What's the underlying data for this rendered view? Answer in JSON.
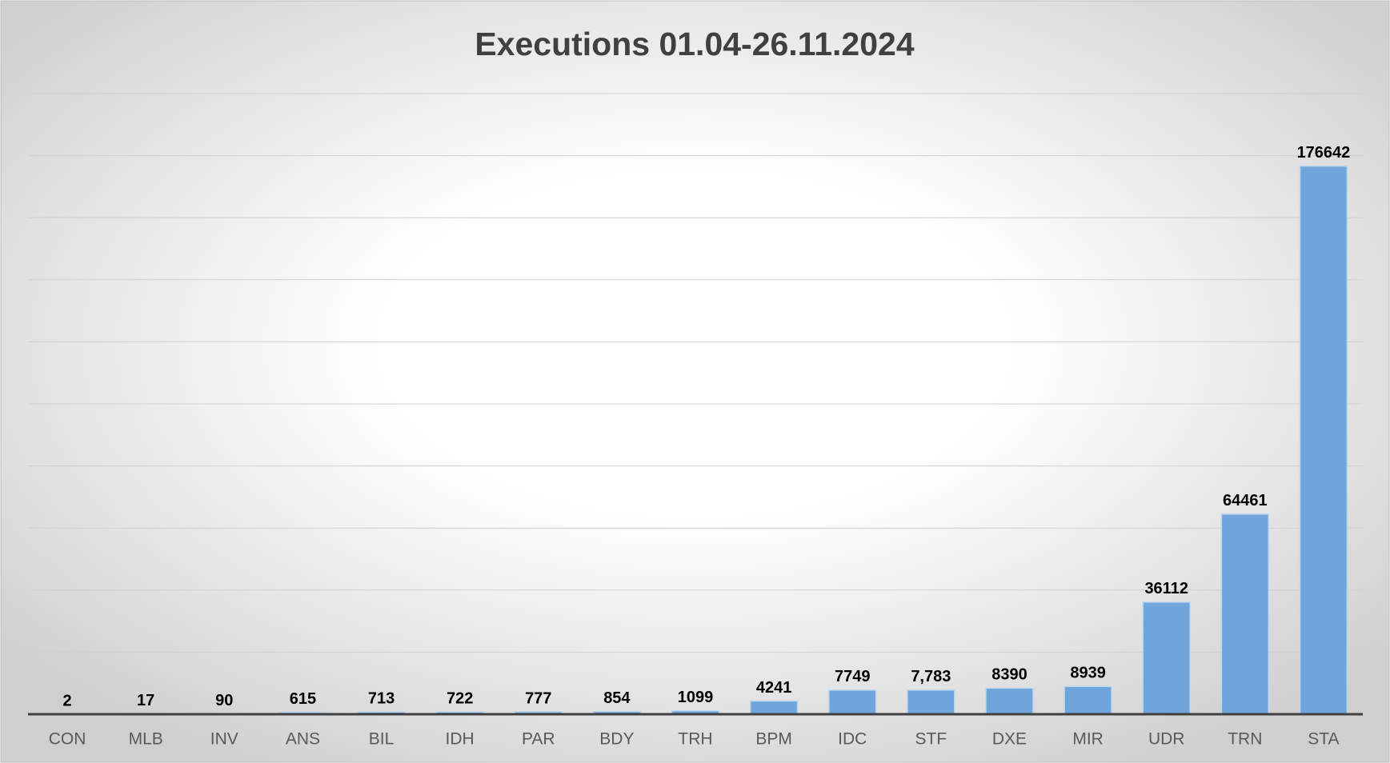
{
  "chart_data": {
    "type": "bar",
    "title": "Executions 01.04-26.11.2024",
    "categories": [
      "CON",
      "MLB",
      "INV",
      "ANS",
      "BIL",
      "IDH",
      "PAR",
      "BDY",
      "TRH",
      "BPM",
      "IDC",
      "STF",
      "DXE",
      "MIR",
      "UDR",
      "TRN",
      "STA"
    ],
    "values": [
      2,
      17,
      90,
      615,
      713,
      722,
      777,
      854,
      1099,
      4241,
      7749,
      7783,
      8390,
      8939,
      36112,
      64461,
      176642
    ],
    "value_labels": [
      "2",
      "17",
      "90",
      "615",
      "713",
      "722",
      "777",
      "854",
      "1099",
      "4241",
      "7749",
      "7,783",
      "8390",
      "8939",
      "36112",
      "64461",
      "176642"
    ],
    "color": "#6fa5da",
    "ylim": [
      0,
      200000
    ],
    "yticks": [
      0,
      20000,
      40000,
      60000,
      80000,
      100000,
      120000,
      140000,
      160000,
      180000,
      200000
    ],
    "grid": true
  }
}
